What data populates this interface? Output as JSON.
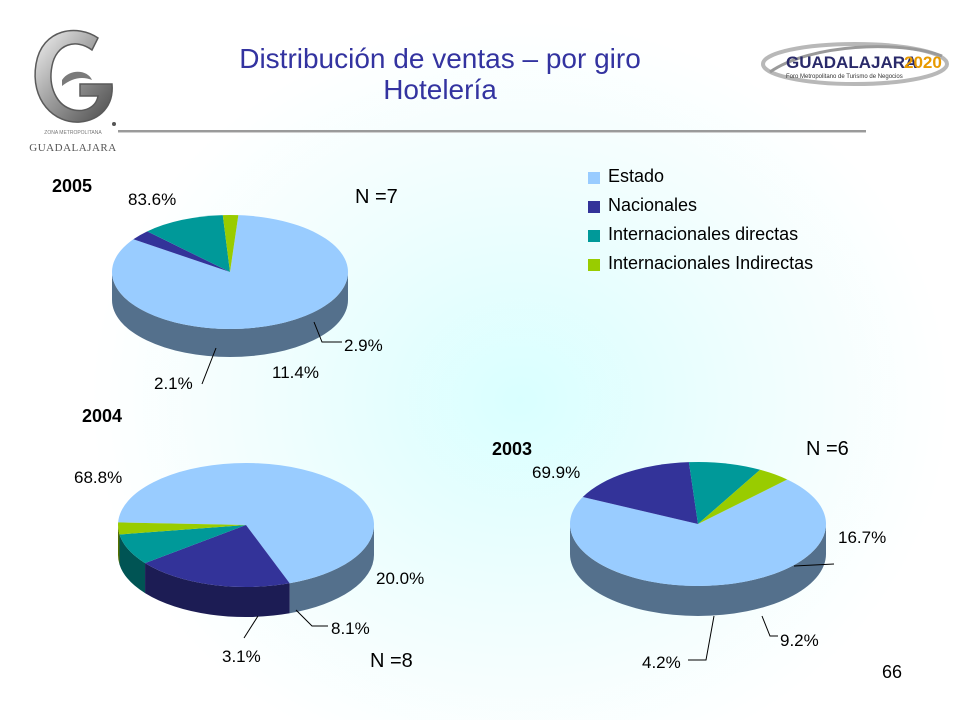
{
  "title": "Distribución de ventas – por giro",
  "subtitle": "Hotelería",
  "page_number": "66",
  "logos": {
    "left": {
      "icon": "guadalajara-g-logo",
      "text": "GUADALAJARA",
      "small_text": "ZONA METROPOLITANA"
    },
    "right": {
      "icon": "guadalajara-2020-logo",
      "text": "GUADALAJARA",
      "year": "2020",
      "tagline": "Foro Metropolitano de Turismo de Negocios"
    }
  },
  "colors": {
    "estado": "#99ccff",
    "nacionales": "#333399",
    "internacionales_directas": "#009999",
    "internacionales_indirectas": "#99cc00"
  },
  "chart_data": [
    {
      "type": "pie",
      "year": "2005",
      "n_label": "N =7",
      "categories": [
        "Estado",
        "Nacionales",
        "Internacionales directas",
        "Internacionales Indirectas"
      ],
      "values": [
        83.6,
        2.9,
        11.4,
        2.1
      ],
      "labels": [
        "83.6%",
        "2.9%",
        "11.4%",
        "2.1%"
      ],
      "legend": "right"
    },
    {
      "type": "pie",
      "year": "2004",
      "n_label": "N =8",
      "categories": [
        "Estado",
        "Nacionales",
        "Internacionales directas",
        "Internacionales Indirectas"
      ],
      "values": [
        68.8,
        20.0,
        8.1,
        3.1
      ],
      "labels": [
        "68.8%",
        "20.0%",
        "8.1%",
        "3.1%"
      ]
    },
    {
      "type": "pie",
      "year": "2003",
      "n_label": "N =6",
      "categories": [
        "Estado",
        "Nacionales",
        "Internacionales directas",
        "Internacionales Indirectas"
      ],
      "values": [
        69.9,
        16.7,
        9.2,
        4.2
      ],
      "labels": [
        "69.9%",
        "16.7%",
        "9.2%",
        "4.2%"
      ]
    }
  ]
}
